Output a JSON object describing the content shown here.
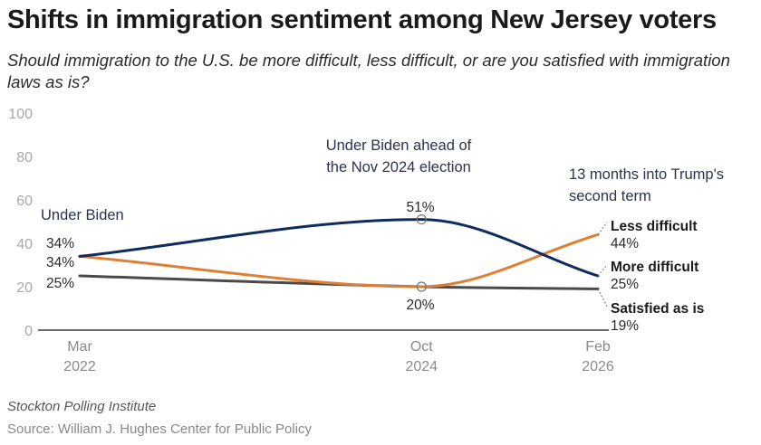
{
  "title": "Shifts in immigration sentiment among New Jersey voters",
  "subtitle": "Should immigration to the U.S. be more difficult, less difficult, or are you satisfied with immigration laws as is?",
  "footer": {
    "note": "Stockton Polling Institute",
    "source": "Source: William J. Hughes Center for Public Policy"
  },
  "chart_data": {
    "type": "line",
    "title": "Shifts in immigration sentiment among New Jersey voters",
    "xlabel": "",
    "ylabel": "",
    "ylim": [
      0,
      100
    ],
    "yticks": [
      0,
      20,
      40,
      60,
      80,
      100
    ],
    "grid": false,
    "x": [
      {
        "month": "Mar",
        "year": "2022",
        "t": 0
      },
      {
        "month": "Oct",
        "year": "2024",
        "t": 31
      },
      {
        "month": "Feb",
        "year": "2026",
        "t": 47
      }
    ],
    "series": [
      {
        "name": "Less difficult",
        "color": "#e07f33",
        "values": [
          34,
          20,
          44
        ],
        "end_label": "44%"
      },
      {
        "name": "More difficult",
        "color": "#0f2c5c",
        "values": [
          34,
          51,
          25
        ],
        "end_label": "25%"
      },
      {
        "name": "Satisfied as is",
        "color": "#4a4a4a",
        "values": [
          25,
          20,
          19
        ],
        "end_label": "19%"
      }
    ],
    "point_labels": [
      {
        "series": "More difficult",
        "x_index": 0,
        "text": "34%"
      },
      {
        "series": "Less difficult",
        "x_index": 0,
        "text": "34%"
      },
      {
        "series": "Satisfied as is",
        "x_index": 0,
        "text": "25%"
      },
      {
        "series": "More difficult",
        "x_index": 1,
        "text": "51%"
      },
      {
        "series": "Less difficult",
        "x_index": 1,
        "text": "20%"
      }
    ],
    "annotations": [
      {
        "x_index": 0,
        "lines": [
          "Under Biden"
        ]
      },
      {
        "x_index": 1,
        "lines": [
          "Under Biden ahead of",
          "the Nov 2024 election"
        ]
      },
      {
        "x_index": 2,
        "lines": [
          "13 months into Trump's",
          "second term"
        ]
      }
    ],
    "legend": "direct-labels-right"
  }
}
